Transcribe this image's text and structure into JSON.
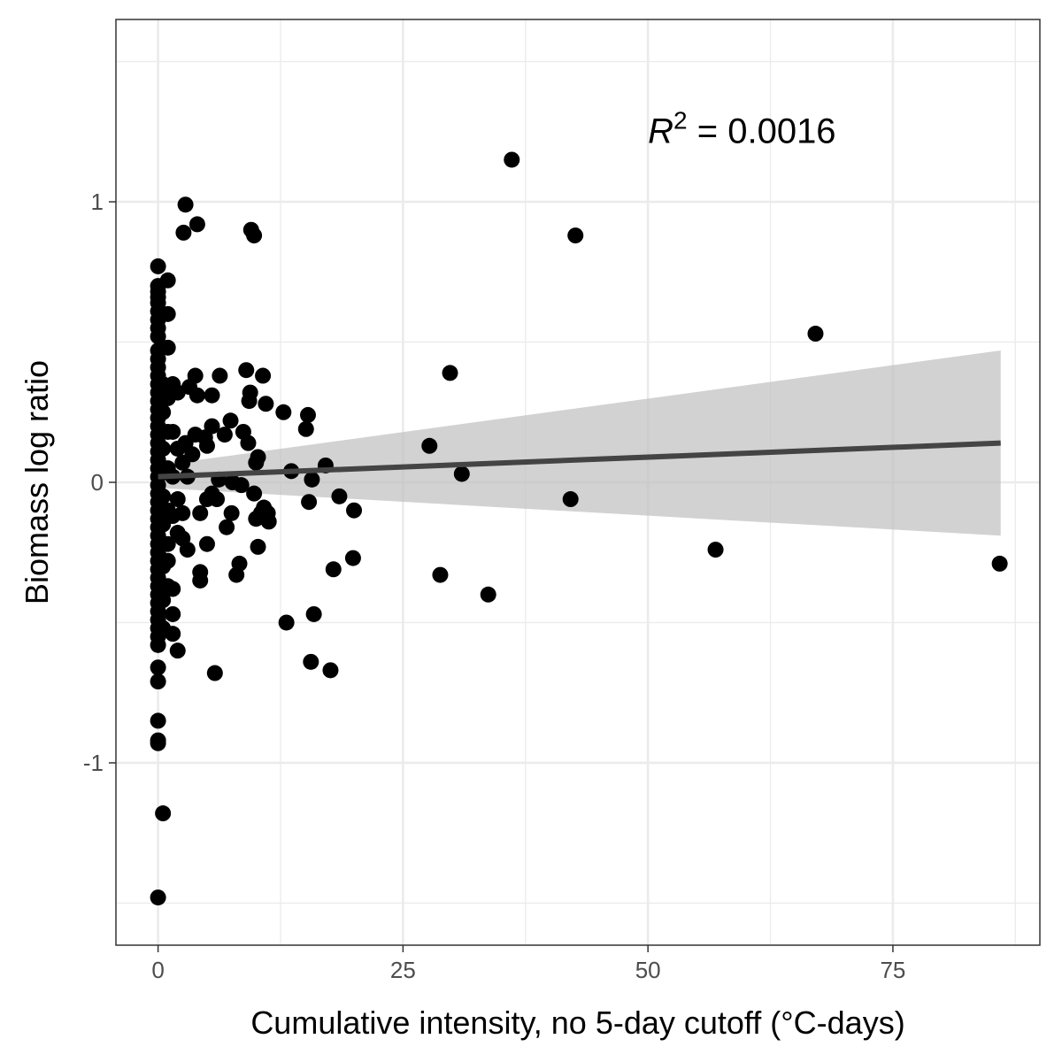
{
  "chart_data": {
    "type": "scatter",
    "xlabel": "Cumulative intensity, no 5-day cutoff (°C-days)",
    "ylabel": "Biomass log ratio",
    "xlim": [
      -4.3,
      90
    ],
    "ylim": [
      -1.65,
      1.65
    ],
    "x_ticks": [
      0,
      25,
      50,
      75
    ],
    "x_tick_labels": [
      "0",
      "25",
      "50",
      "75"
    ],
    "y_ticks": [
      -1,
      0,
      1
    ],
    "y_tick_labels": [
      "-1",
      "0",
      "1"
    ],
    "grid": true,
    "annotation": {
      "prefix": "R",
      "superscript": "2",
      "suffix": " = 0.0016",
      "x": 50,
      "y": 1.21
    },
    "fit": {
      "x": [
        0,
        86
      ],
      "y": [
        0.02,
        0.14
      ],
      "ci_lower": [
        -0.02,
        -0.19
      ],
      "ci_upper": [
        0.06,
        0.47
      ],
      "line_color": "#444444",
      "band_color": "#bfbfbf"
    },
    "point_color": "#000000",
    "points": [
      [
        0,
        0.77
      ],
      [
        0,
        0.7
      ],
      [
        0,
        0.68
      ],
      [
        0,
        0.66
      ],
      [
        0,
        0.64
      ],
      [
        0,
        0.61
      ],
      [
        0,
        0.58
      ],
      [
        0,
        0.55
      ],
      [
        0,
        0.52
      ],
      [
        0,
        0.47
      ],
      [
        0,
        0.44
      ],
      [
        0,
        0.41
      ],
      [
        0,
        0.38
      ],
      [
        0,
        0.35
      ],
      [
        0,
        0.32
      ],
      [
        0,
        0.29
      ],
      [
        0,
        0.26
      ],
      [
        0,
        0.23
      ],
      [
        0,
        0.2
      ],
      [
        0,
        0.17
      ],
      [
        0,
        0.14
      ],
      [
        0,
        0.11
      ],
      [
        0,
        0.08
      ],
      [
        0,
        0.05
      ],
      [
        0,
        0.02
      ],
      [
        0,
        -0.01
      ],
      [
        0,
        -0.04
      ],
      [
        0,
        -0.07
      ],
      [
        0,
        -0.1
      ],
      [
        0,
        -0.13
      ],
      [
        0,
        -0.16
      ],
      [
        0,
        -0.19
      ],
      [
        0,
        -0.22
      ],
      [
        0,
        -0.25
      ],
      [
        0,
        -0.28
      ],
      [
        0,
        -0.31
      ],
      [
        0,
        -0.34
      ],
      [
        0,
        -0.37
      ],
      [
        0,
        -0.4
      ],
      [
        0,
        -0.43
      ],
      [
        0,
        -0.46
      ],
      [
        0,
        -0.49
      ],
      [
        0,
        -0.52
      ],
      [
        0,
        -0.55
      ],
      [
        0,
        -0.58
      ],
      [
        0,
        -0.66
      ],
      [
        0,
        -0.71
      ],
      [
        0,
        -0.85
      ],
      [
        0,
        -0.92
      ],
      [
        0,
        -0.93
      ],
      [
        0,
        -1.48
      ],
      [
        0.5,
        -1.18
      ],
      [
        0.5,
        0.35
      ],
      [
        0.5,
        0.25
      ],
      [
        0.5,
        0.12
      ],
      [
        0.5,
        -0.05
      ],
      [
        0.5,
        -0.15
      ],
      [
        0.5,
        -0.3
      ],
      [
        0.5,
        -0.42
      ],
      [
        0.5,
        -0.52
      ],
      [
        1,
        0.72
      ],
      [
        1,
        0.6
      ],
      [
        1,
        0.48
      ],
      [
        1,
        0.3
      ],
      [
        1,
        0.18
      ],
      [
        1,
        0.05
      ],
      [
        1,
        -0.1
      ],
      [
        1,
        -0.22
      ],
      [
        1,
        -0.28
      ],
      [
        1,
        -0.37
      ],
      [
        1.5,
        0.35
      ],
      [
        1.5,
        0.18
      ],
      [
        1.5,
        0.02
      ],
      [
        1.5,
        -0.12
      ],
      [
        1.5,
        -0.38
      ],
      [
        1.5,
        -0.47
      ],
      [
        1.5,
        -0.54
      ],
      [
        2,
        0.32
      ],
      [
        2,
        0.12
      ],
      [
        2,
        -0.06
      ],
      [
        2,
        -0.18
      ],
      [
        2,
        -0.6
      ],
      [
        2.5,
        0.07
      ],
      [
        2.5,
        -0.11
      ],
      [
        2.5,
        -0.2
      ],
      [
        2.8,
        0.99
      ],
      [
        2.6,
        0.89
      ],
      [
        2.8,
        0.14
      ],
      [
        3,
        0.02
      ],
      [
        3,
        -0.24
      ],
      [
        3.2,
        0.34
      ],
      [
        3.5,
        0.1
      ],
      [
        4,
        0.92
      ],
      [
        3.8,
        0.38
      ],
      [
        3.8,
        0.17
      ],
      [
        4,
        0.31
      ],
      [
        4.3,
        -0.11
      ],
      [
        4.3,
        -0.32
      ],
      [
        4.3,
        -0.35
      ],
      [
        4.8,
        0.16
      ],
      [
        5,
        0.13
      ],
      [
        5,
        -0.06
      ],
      [
        5,
        -0.22
      ],
      [
        5.5,
        0.31
      ],
      [
        5.5,
        0.2
      ],
      [
        5.5,
        -0.04
      ],
      [
        5.8,
        -0.68
      ],
      [
        6,
        -0.06
      ],
      [
        6.2,
        0.01
      ],
      [
        6.3,
        0.38
      ],
      [
        6.8,
        0.17
      ],
      [
        7,
        -0.16
      ],
      [
        7.4,
        0.22
      ],
      [
        7.5,
        -0.11
      ],
      [
        7.6,
        0.0
      ],
      [
        8,
        -0.33
      ],
      [
        8.3,
        -0.29
      ],
      [
        8.5,
        -0.01
      ],
      [
        8.7,
        0.18
      ],
      [
        9,
        0.4
      ],
      [
        9.2,
        0.14
      ],
      [
        9.3,
        0.29
      ],
      [
        9.4,
        0.32
      ],
      [
        9.5,
        0.9
      ],
      [
        9.8,
        0.88
      ],
      [
        9.8,
        -0.04
      ],
      [
        10,
        -0.13
      ],
      [
        10,
        0.07
      ],
      [
        10.2,
        0.09
      ],
      [
        10.2,
        -0.23
      ],
      [
        10.5,
        -0.11
      ],
      [
        10.7,
        0.38
      ],
      [
        10.8,
        -0.09
      ],
      [
        11,
        0.28
      ],
      [
        11.2,
        -0.11
      ],
      [
        11.3,
        -0.14
      ],
      [
        12.8,
        0.25
      ],
      [
        13.1,
        -0.5
      ],
      [
        13.6,
        0.04
      ],
      [
        15.1,
        0.19
      ],
      [
        15.3,
        0.24
      ],
      [
        15.4,
        -0.07
      ],
      [
        15.6,
        -0.64
      ],
      [
        15.7,
        0.01
      ],
      [
        15.9,
        -0.47
      ],
      [
        17.1,
        0.06
      ],
      [
        17.6,
        -0.67
      ],
      [
        17.9,
        -0.31
      ],
      [
        18.5,
        -0.05
      ],
      [
        19.9,
        -0.27
      ],
      [
        20,
        -0.1
      ],
      [
        27.7,
        0.13
      ],
      [
        28.8,
        -0.33
      ],
      [
        29.8,
        0.39
      ],
      [
        31.0,
        0.03
      ],
      [
        33.7,
        -0.4
      ],
      [
        36.1,
        1.15
      ],
      [
        42.1,
        -0.06
      ],
      [
        42.6,
        0.88
      ],
      [
        56.9,
        -0.24
      ],
      [
        67.1,
        0.53
      ],
      [
        85.9,
        -0.29
      ]
    ]
  }
}
